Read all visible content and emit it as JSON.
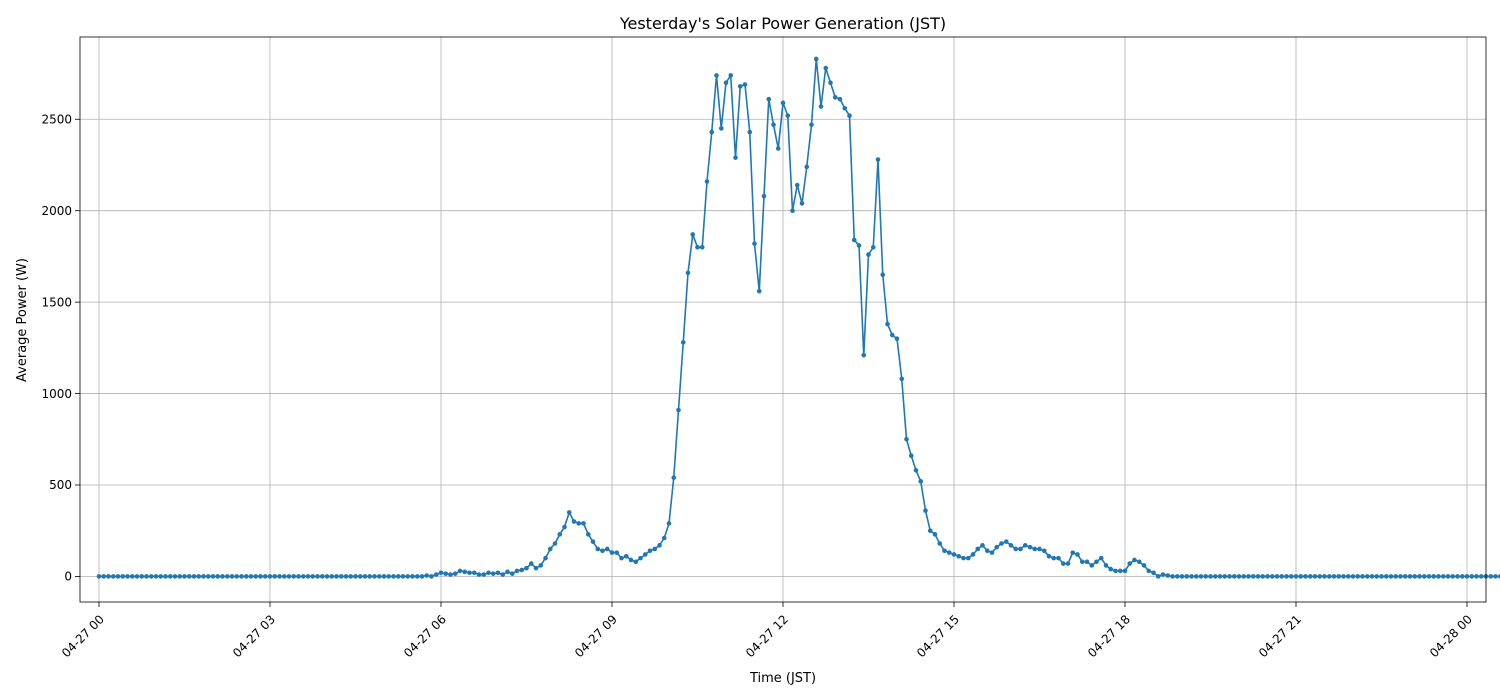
{
  "chart_data": {
    "type": "line",
    "title": "Yesterday's Solar Power Generation (JST)",
    "xlabel": "Time (JST)",
    "ylabel": "Average Power (W)",
    "x_start": "2025-04-27T00:00",
    "x_step_minutes": 5,
    "xlim": [
      "2025-04-26T23:40",
      "2025-04-28T00:20"
    ],
    "ylim": [
      -140,
      2950
    ],
    "xticks": [
      "04-27 00",
      "04-27 03",
      "04-27 06",
      "04-27 09",
      "04-27 12",
      "04-27 15",
      "04-27 18",
      "04-27 21",
      "04-28 00"
    ],
    "yticks": [
      0,
      500,
      1000,
      1500,
      2000,
      2500
    ],
    "grid": true,
    "color": "#1f77b4",
    "markers": "dot",
    "series": [
      {
        "values": [
          0,
          0,
          0,
          0,
          0,
          0,
          0,
          0,
          0,
          0,
          0,
          0,
          0,
          0,
          0,
          0,
          0,
          0,
          0,
          0,
          0,
          0,
          0,
          0,
          0,
          0,
          0,
          0,
          0,
          0,
          0,
          0,
          0,
          0,
          0,
          0,
          0,
          0,
          0,
          0,
          0,
          0,
          0,
          0,
          0,
          0,
          0,
          0,
          0,
          0,
          0,
          0,
          0,
          0,
          0,
          0,
          0,
          0,
          0,
          0,
          0,
          0,
          0,
          0,
          0,
          0,
          0,
          0,
          0,
          5,
          0,
          10,
          20,
          15,
          10,
          15,
          30,
          25,
          20,
          20,
          10,
          10,
          20,
          15,
          20,
          10,
          25,
          15,
          30,
          35,
          45,
          70,
          45,
          60,
          100,
          150,
          180,
          230,
          270,
          350,
          300,
          290,
          290,
          230,
          190,
          150,
          140,
          150,
          130,
          130,
          100,
          110,
          90,
          80,
          100,
          120,
          140,
          150,
          170,
          210,
          290,
          540,
          910,
          1280,
          1660,
          1870,
          1800,
          1800,
          2160,
          2430,
          2740,
          2450,
          2700,
          2740,
          2290,
          2680,
          2690,
          2430,
          1820,
          1560,
          2080,
          2610,
          2470,
          2340,
          2590,
          2520,
          2000,
          2140,
          2040,
          2240,
          2470,
          2830,
          2570,
          2780,
          2700,
          2620,
          2610,
          2560,
          2520,
          1840,
          1810,
          1210,
          1760,
          1800,
          2280,
          1650,
          1380,
          1320,
          1300,
          1080,
          750,
          660,
          580,
          520,
          360,
          250,
          230,
          180,
          140,
          130,
          120,
          110,
          100,
          100,
          120,
          150,
          170,
          140,
          130,
          160,
          180,
          190,
          170,
          150,
          150,
          170,
          160,
          150,
          150,
          140,
          110,
          100,
          100,
          70,
          70,
          130,
          120,
          80,
          80,
          60,
          80,
          100,
          60,
          40,
          30,
          30,
          30,
          70,
          90,
          80,
          60,
          30,
          20,
          0,
          10,
          5,
          0,
          0,
          0,
          0,
          0,
          0,
          0,
          0,
          0,
          0,
          0,
          0,
          0,
          0,
          0,
          0,
          0,
          0,
          0,
          0,
          0,
          0,
          0,
          0,
          0,
          0,
          0,
          0,
          0,
          0,
          0,
          0,
          0,
          0,
          0,
          0,
          0,
          0,
          0,
          0,
          0,
          0,
          0,
          0,
          0,
          0,
          0,
          0,
          0,
          0,
          0,
          0,
          0,
          0,
          0,
          0,
          0,
          0,
          0,
          0,
          0,
          0,
          0,
          0,
          0,
          0,
          0,
          0,
          0,
          0
        ]
      }
    ]
  }
}
